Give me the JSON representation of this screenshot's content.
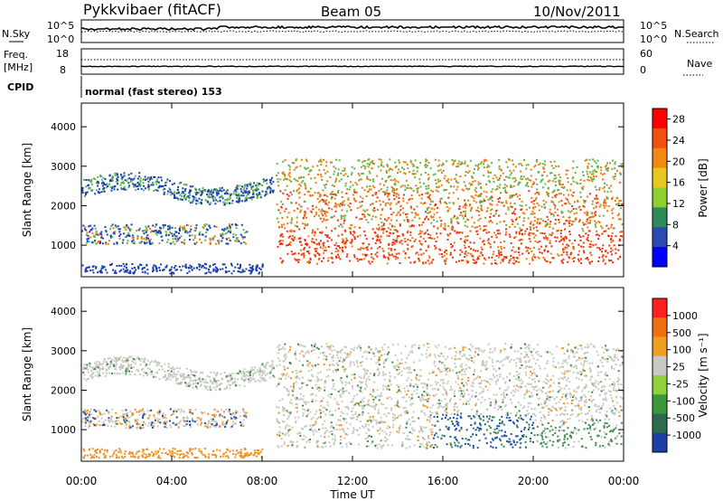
{
  "header": {
    "station": "Pykkvibaer (fitACF)",
    "beam": "Beam 05",
    "date": "10/Nov/2011"
  },
  "strips": {
    "nsky_label": "N.Sky",
    "nsky_ticks": [
      "10^5",
      "10^0"
    ],
    "nsearch_label": "N.Search",
    "nsearch_ticks": [
      "10^5",
      "10^0"
    ],
    "freq_label": "Freq.",
    "freq_unit": "[MHz]",
    "freq_ticks": [
      "18",
      "8"
    ],
    "nave_label": "Nave",
    "nave_ticks": [
      "60",
      "0"
    ],
    "cpid_label": "CPID",
    "cpid_text": "normal (fast stereo) 153"
  },
  "chart_data": [
    {
      "type": "heatmap",
      "title": "",
      "xlabel": "",
      "ylabel": "Slant Range [km]",
      "y_ticks": [
        "1000",
        "2000",
        "3000",
        "4000"
      ],
      "ylim": [
        200,
        4600
      ],
      "xlim": [
        "00:00",
        "24:00"
      ],
      "colorbar": {
        "label": "Power [dB]",
        "ticks": [
          "4",
          "8",
          "12",
          "16",
          "20",
          "24",
          "28"
        ],
        "range": [
          0,
          30
        ],
        "colors": [
          "#0000ff",
          "#2a4ab0",
          "#2f8a5a",
          "#8fd030",
          "#e8c820",
          "#f08a10",
          "#f05010",
          "#ff0000"
        ]
      }
    },
    {
      "type": "heatmap",
      "title": "",
      "xlabel": "Time UT",
      "ylabel": "Slant Range [km]",
      "x_ticks": [
        "00:00",
        "04:00",
        "08:00",
        "12:00",
        "16:00",
        "20:00",
        "00:00"
      ],
      "y_ticks": [
        "1000",
        "2000",
        "3000",
        "4000"
      ],
      "ylim": [
        200,
        4600
      ],
      "xlim": [
        "00:00",
        "24:00"
      ],
      "colorbar": {
        "label": "Velocity [m s⁻¹]",
        "ticks": [
          "1000",
          "500",
          "100",
          "25",
          "-25",
          "-100",
          "-500",
          "-1000"
        ],
        "colors": [
          "#1c3fa8",
          "#2d6a4f",
          "#3a9a3a",
          "#8ed33a",
          "#c8c8c8",
          "#f0a020",
          "#f07010",
          "#ff2020"
        ]
      }
    }
  ],
  "palette": {
    "pw_blue": "#1a3fb0",
    "pw_green": "#5cb848",
    "pw_orange": "#f07a10",
    "pw_red": "#f03010",
    "v_grey": "#c8c8c0",
    "v_green": "#3a8a4a",
    "v_blue": "#1c4fa8",
    "v_orange": "#f09020"
  }
}
